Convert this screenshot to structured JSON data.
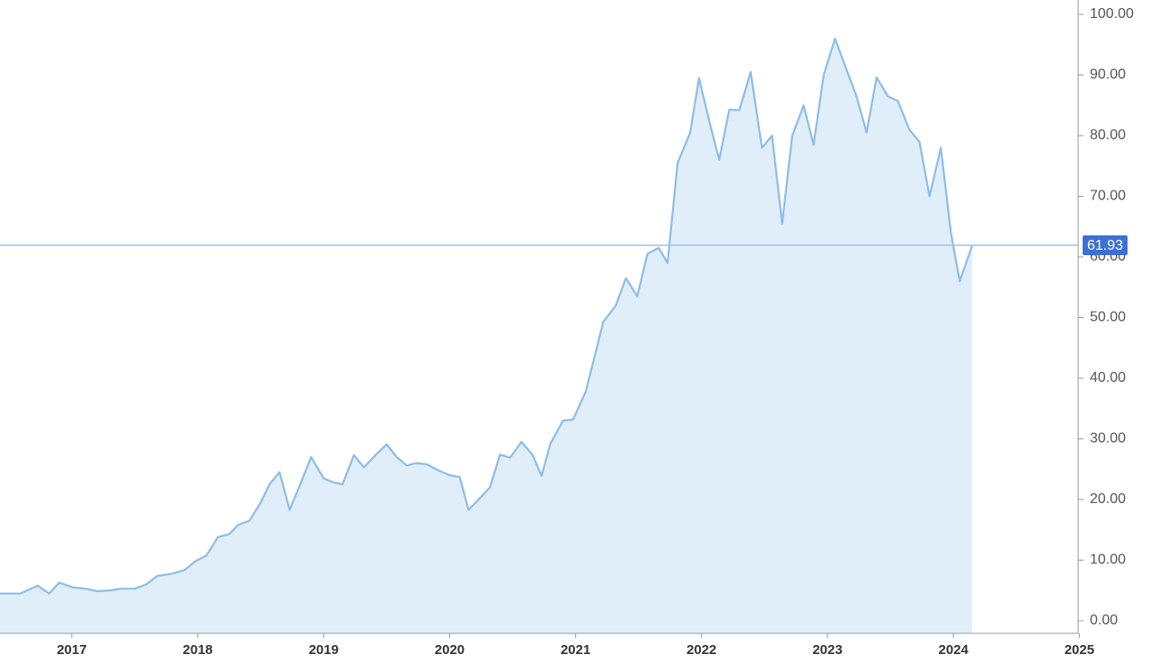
{
  "chart_data": {
    "type": "area",
    "x": [
      2016.43,
      2016.59,
      2016.73,
      2016.82,
      2016.9,
      2017.01,
      2017.11,
      2017.2,
      2017.3,
      2017.39,
      2017.5,
      2017.59,
      2017.68,
      2017.8,
      2017.89,
      2017.98,
      2018.07,
      2018.16,
      2018.25,
      2018.32,
      2018.41,
      2018.5,
      2018.57,
      2018.65,
      2018.73,
      2018.82,
      2018.9,
      2019.0,
      2019.08,
      2019.15,
      2019.24,
      2019.32,
      2019.41,
      2019.5,
      2019.58,
      2019.66,
      2019.73,
      2019.82,
      2019.91,
      2020.0,
      2020.08,
      2020.15,
      2020.23,
      2020.32,
      2020.4,
      2020.48,
      2020.57,
      2020.66,
      2020.73,
      2020.8,
      2020.9,
      2020.98,
      2021.08,
      2021.15,
      2021.22,
      2021.32,
      2021.4,
      2021.49,
      2021.57,
      2021.66,
      2021.73,
      2021.81,
      2021.91,
      2021.98,
      2022.06,
      2022.14,
      2022.22,
      2022.3,
      2022.39,
      2022.48,
      2022.56,
      2022.64,
      2022.72,
      2022.81,
      2022.89,
      2022.97,
      2023.06,
      2023.14,
      2023.23,
      2023.31,
      2023.39,
      2023.48,
      2023.56,
      2023.65,
      2023.73,
      2023.81,
      2023.9,
      2023.98,
      2024.05,
      2024.15
    ],
    "values": [
      4.5,
      4.5,
      5.8,
      4.5,
      6.3,
      5.5,
      5.3,
      4.9,
      5.0,
      5.3,
      5.3,
      6.0,
      7.4,
      7.8,
      8.3,
      9.8,
      10.8,
      13.8,
      14.3,
      15.8,
      16.5,
      19.5,
      22.5,
      24.5,
      18.3,
      22.8,
      27.0,
      23.5,
      22.8,
      22.5,
      27.3,
      25.3,
      27.3,
      29.1,
      27.0,
      25.6,
      26.0,
      25.8,
      24.8,
      24.0,
      23.7,
      18.3,
      20.0,
      22.0,
      27.4,
      26.9,
      29.5,
      27.3,
      23.9,
      29.2,
      33.0,
      33.2,
      37.8,
      43.5,
      49.3,
      52.0,
      56.5,
      53.5,
      60.5,
      61.5,
      59.0,
      75.5,
      80.5,
      89.5,
      82.5,
      76.0,
      84.3,
      84.2,
      90.5,
      78.0,
      80.0,
      65.5,
      80.0,
      85.0,
      78.5,
      90.0,
      96.0,
      91.5,
      86.5,
      80.5,
      89.6,
      86.5,
      85.7,
      81.0,
      79.0,
      70.0,
      78.0,
      64.0,
      56.0,
      61.93
    ],
    "color": "#8dbde6",
    "fill_color": "#e0eefa",
    "last_value": 61.93,
    "last_value_color": "#3d6fd6",
    "xlim": [
      2016.43,
      2024.99
    ],
    "xticks": [
      2017,
      2018,
      2019,
      2020,
      2021,
      2022,
      2023,
      2024,
      2025
    ],
    "ylim": [
      -2.07,
      102.37
    ],
    "yticks": [
      {
        "value": 0,
        "label": "0.00"
      },
      {
        "value": 10,
        "label": "10.00"
      },
      {
        "value": 20,
        "label": "20.00"
      },
      {
        "value": 30,
        "label": "30.00"
      },
      {
        "value": 40,
        "label": "40.00"
      },
      {
        "value": 50,
        "label": "50.00"
      },
      {
        "value": 60,
        "label": "60.00"
      },
      {
        "value": 70,
        "label": "70.00"
      },
      {
        "value": 80,
        "label": "80.00"
      },
      {
        "value": 90,
        "label": "90.00"
      },
      {
        "value": 100,
        "label": "100.00"
      }
    ]
  }
}
